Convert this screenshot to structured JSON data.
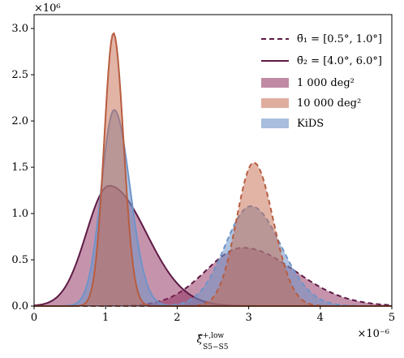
{
  "chart_data": {
    "type": "area",
    "xlabel": "ξ̂ +,low S5−S5",
    "xlabel_parts": {
      "symbol": "ξ̂",
      "sup": "+,low",
      "sub": "S5−S5"
    },
    "x_scale_label": "×10⁻⁶",
    "y_scale_label": "×10⁶",
    "xlim": [
      0,
      5
    ],
    "ylim": [
      0,
      3.15
    ],
    "x_ticks": [
      "0",
      "1",
      "2",
      "3",
      "4",
      "5"
    ],
    "y_ticks": [
      "0.0",
      "0.5",
      "1.0",
      "1.5",
      "2.0",
      "2.5",
      "3.0"
    ],
    "colors": {
      "1000": "#8c2a5a",
      "10000": "#c46a4e",
      "kids": "#6f93c8",
      "line_1000": "#5e1a45",
      "line_10000": "#b85c40",
      "line_kids": "#6f93c8"
    },
    "series": [
      {
        "name": "1 000 deg²",
        "bin": "θ̄₂",
        "style": "filled",
        "color_key": "1000",
        "mean": 1.05,
        "sd_left": 0.32,
        "sd_right": 0.52,
        "peak": 1.3
      },
      {
        "name": "10 000 deg²",
        "bin": "θ̄₂",
        "style": "filled",
        "color_key": "10000",
        "mean": 1.11,
        "sd_left": 0.13,
        "sd_right": 0.14,
        "peak": 2.95
      },
      {
        "name": "KiDS",
        "bin": "θ̄₂",
        "style": "filled",
        "color_key": "kids",
        "mean": 1.12,
        "sd_left": 0.18,
        "sd_right": 0.22,
        "peak": 2.12
      },
      {
        "name": "1 000 deg²",
        "bin": "θ̄₁",
        "style": "filled-dashed",
        "color_key": "1000",
        "mean": 2.92,
        "sd_left": 0.52,
        "sd_right": 0.72,
        "peak": 0.63
      },
      {
        "name": "10 000 deg²",
        "bin": "θ̄₁",
        "style": "filled-dashed",
        "color_key": "10000",
        "mean": 3.07,
        "sd_left": 0.24,
        "sd_right": 0.27,
        "peak": 1.55
      },
      {
        "name": "KiDS",
        "bin": "θ̄₁",
        "style": "filled-dashed",
        "color_key": "kids",
        "mean": 3.03,
        "sd_left": 0.36,
        "sd_right": 0.42,
        "peak": 1.08
      }
    ],
    "legend": {
      "placement": "top-right",
      "entries": [
        {
          "kind": "dashed-line",
          "color_key": "line_1000",
          "label_math": "θ̄₁ = [0.5°, 1.0°]"
        },
        {
          "kind": "solid-line",
          "color_key": "line_1000",
          "label_math": "θ̄₂ = [4.0°, 6.0°]"
        },
        {
          "kind": "patch",
          "color_key": "1000",
          "label": "1 000 deg²"
        },
        {
          "kind": "patch",
          "color_key": "10000",
          "label": "10 000 deg²"
        },
        {
          "kind": "patch",
          "color_key": "kids",
          "label": "KiDS"
        }
      ]
    },
    "grid": false
  }
}
